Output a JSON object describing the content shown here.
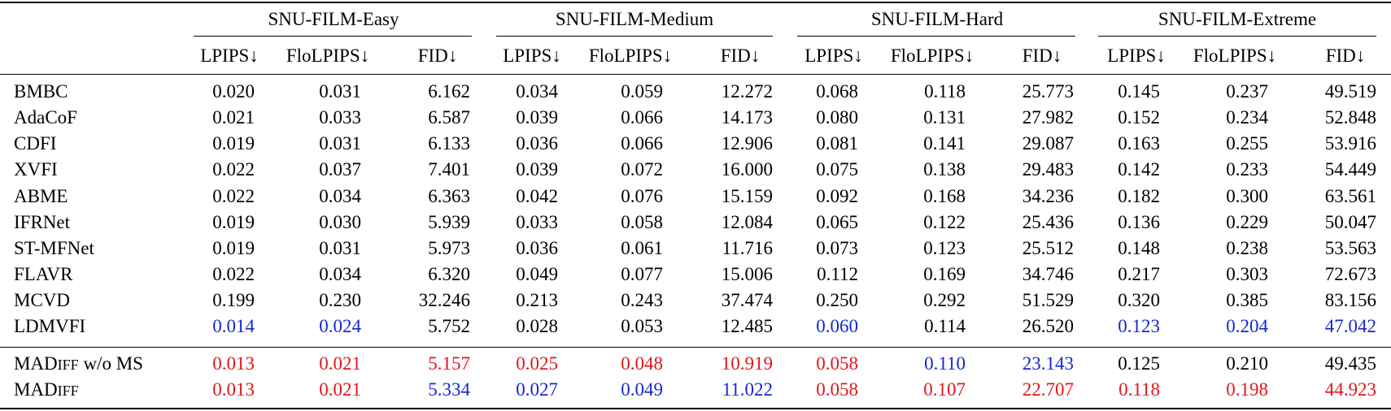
{
  "groups": [
    "SNU-FILM-Easy",
    "SNU-FILM-Medium",
    "SNU-FILM-Hard",
    "SNU-FILM-Extreme"
  ],
  "metrics": [
    "LPIPS↓",
    "FloLPIPS↓",
    "FID↓"
  ],
  "rows": [
    {
      "method": "BMBC",
      "values": [
        "0.020",
        "0.031",
        "6.162",
        "0.034",
        "0.059",
        "12.272",
        "0.068",
        "0.118",
        "25.773",
        "0.145",
        "0.237",
        "49.519"
      ],
      "colors": [
        "",
        "",
        "",
        "",
        "",
        "",
        "",
        "",
        "",
        "",
        "",
        ""
      ]
    },
    {
      "method": "AdaCoF",
      "values": [
        "0.021",
        "0.033",
        "6.587",
        "0.039",
        "0.066",
        "14.173",
        "0.080",
        "0.131",
        "27.982",
        "0.152",
        "0.234",
        "52.848"
      ],
      "colors": [
        "",
        "",
        "",
        "",
        "",
        "",
        "",
        "",
        "",
        "",
        "",
        ""
      ]
    },
    {
      "method": "CDFI",
      "values": [
        "0.019",
        "0.031",
        "6.133",
        "0.036",
        "0.066",
        "12.906",
        "0.081",
        "0.141",
        "29.087",
        "0.163",
        "0.255",
        "53.916"
      ],
      "colors": [
        "",
        "",
        "",
        "",
        "",
        "",
        "",
        "",
        "",
        "",
        "",
        ""
      ]
    },
    {
      "method": "XVFI",
      "values": [
        "0.022",
        "0.037",
        "7.401",
        "0.039",
        "0.072",
        "16.000",
        "0.075",
        "0.138",
        "29.483",
        "0.142",
        "0.233",
        "54.449"
      ],
      "colors": [
        "",
        "",
        "",
        "",
        "",
        "",
        "",
        "",
        "",
        "",
        "",
        ""
      ]
    },
    {
      "method": "ABME",
      "values": [
        "0.022",
        "0.034",
        "6.363",
        "0.042",
        "0.076",
        "15.159",
        "0.092",
        "0.168",
        "34.236",
        "0.182",
        "0.300",
        "63.561"
      ],
      "colors": [
        "",
        "",
        "",
        "",
        "",
        "",
        "",
        "",
        "",
        "",
        "",
        ""
      ]
    },
    {
      "method": "IFRNet",
      "values": [
        "0.019",
        "0.030",
        "5.939",
        "0.033",
        "0.058",
        "12.084",
        "0.065",
        "0.122",
        "25.436",
        "0.136",
        "0.229",
        "50.047"
      ],
      "colors": [
        "",
        "",
        "",
        "",
        "",
        "",
        "",
        "",
        "",
        "",
        "",
        ""
      ]
    },
    {
      "method": "ST-MFNet",
      "values": [
        "0.019",
        "0.031",
        "5.973",
        "0.036",
        "0.061",
        "11.716",
        "0.073",
        "0.123",
        "25.512",
        "0.148",
        "0.238",
        "53.563"
      ],
      "colors": [
        "",
        "",
        "",
        "",
        "",
        "",
        "",
        "",
        "",
        "",
        "",
        ""
      ]
    },
    {
      "method": "FLAVR",
      "values": [
        "0.022",
        "0.034",
        "6.320",
        "0.049",
        "0.077",
        "15.006",
        "0.112",
        "0.169",
        "34.746",
        "0.217",
        "0.303",
        "72.673"
      ],
      "colors": [
        "",
        "",
        "",
        "",
        "",
        "",
        "",
        "",
        "",
        "",
        "",
        ""
      ]
    },
    {
      "method": "MCVD",
      "values": [
        "0.199",
        "0.230",
        "32.246",
        "0.213",
        "0.243",
        "37.474",
        "0.250",
        "0.292",
        "51.529",
        "0.320",
        "0.385",
        "83.156"
      ],
      "colors": [
        "",
        "",
        "",
        "",
        "",
        "",
        "",
        "",
        "",
        "",
        "",
        ""
      ]
    },
    {
      "method": "LDMVFI",
      "values": [
        "0.014",
        "0.024",
        "5.752",
        "0.028",
        "0.053",
        "12.485",
        "0.060",
        "0.114",
        "26.520",
        "0.123",
        "0.204",
        "47.042"
      ],
      "colors": [
        "blue",
        "blue",
        "",
        "",
        "",
        "",
        "blue",
        "",
        "",
        "blue",
        "blue",
        "blue"
      ]
    },
    {
      "method": "MAD",
      "method_sc": "IFF",
      "method_suffix": " w/o MS",
      "values": [
        "0.013",
        "0.021",
        "5.157",
        "0.025",
        "0.048",
        "10.919",
        "0.058",
        "0.110",
        "23.143",
        "0.125",
        "0.210",
        "49.435"
      ],
      "colors": [
        "red",
        "red",
        "red",
        "red",
        "red",
        "red",
        "red",
        "blue",
        "blue",
        "",
        "",
        ""
      ]
    },
    {
      "method": "MAD",
      "method_sc": "IFF",
      "method_suffix": "",
      "values": [
        "0.013",
        "0.021",
        "5.334",
        "0.027",
        "0.049",
        "11.022",
        "0.058",
        "0.107",
        "22.707",
        "0.118",
        "0.198",
        "44.923"
      ],
      "colors": [
        "red",
        "red",
        "blue",
        "blue",
        "blue",
        "blue",
        "red",
        "red",
        "red",
        "red",
        "red",
        "red"
      ]
    }
  ]
}
